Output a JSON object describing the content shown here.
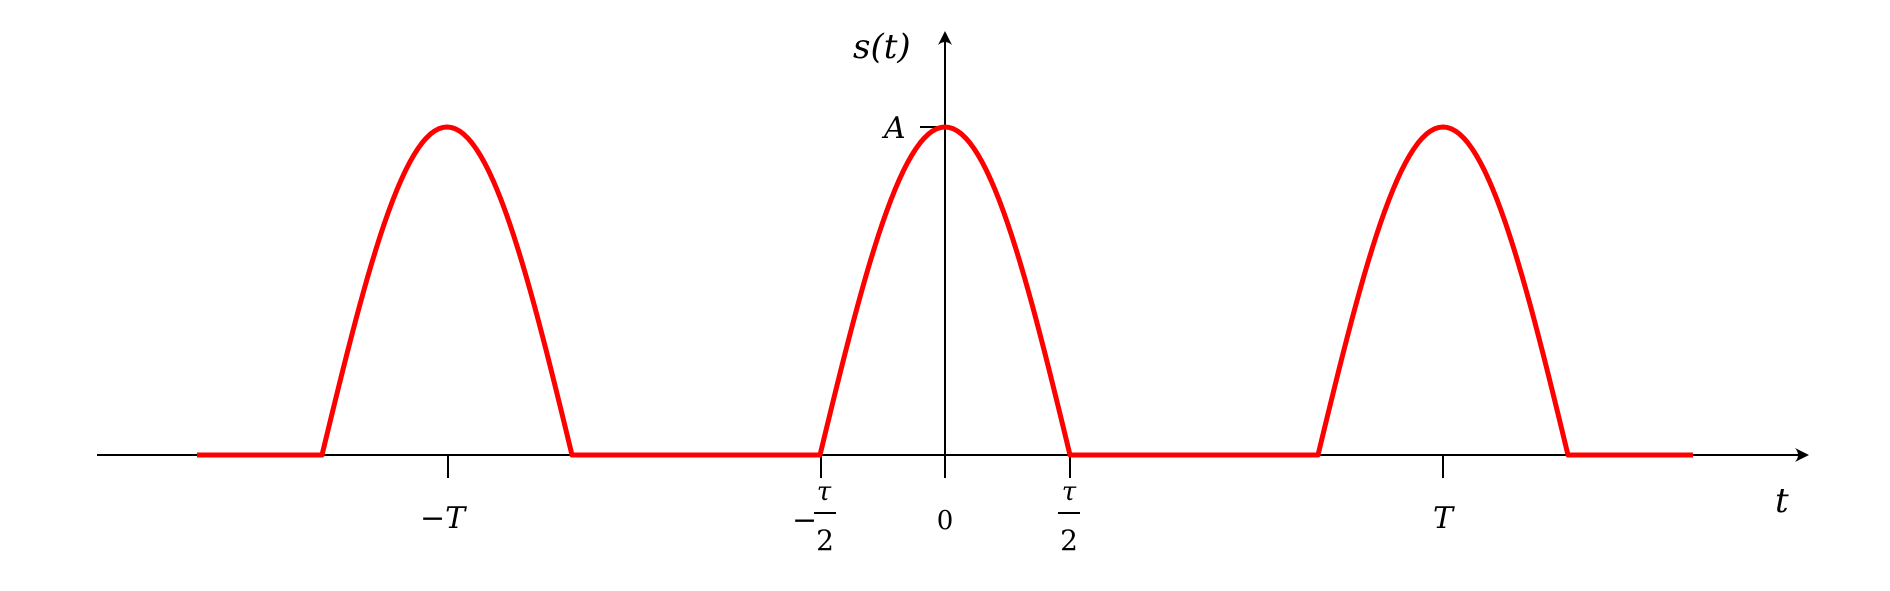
{
  "y_axis_label": "s(t)",
  "x_axis_label": "t",
  "amplitude_label": "A",
  "tick_labels": {
    "minus_T": "−T",
    "minus_tau_sign": "−",
    "tau": "τ",
    "two": "2",
    "zero": "0",
    "T": "T"
  },
  "colors": {
    "signal": "#ff0000",
    "axes": "#000000"
  }
}
